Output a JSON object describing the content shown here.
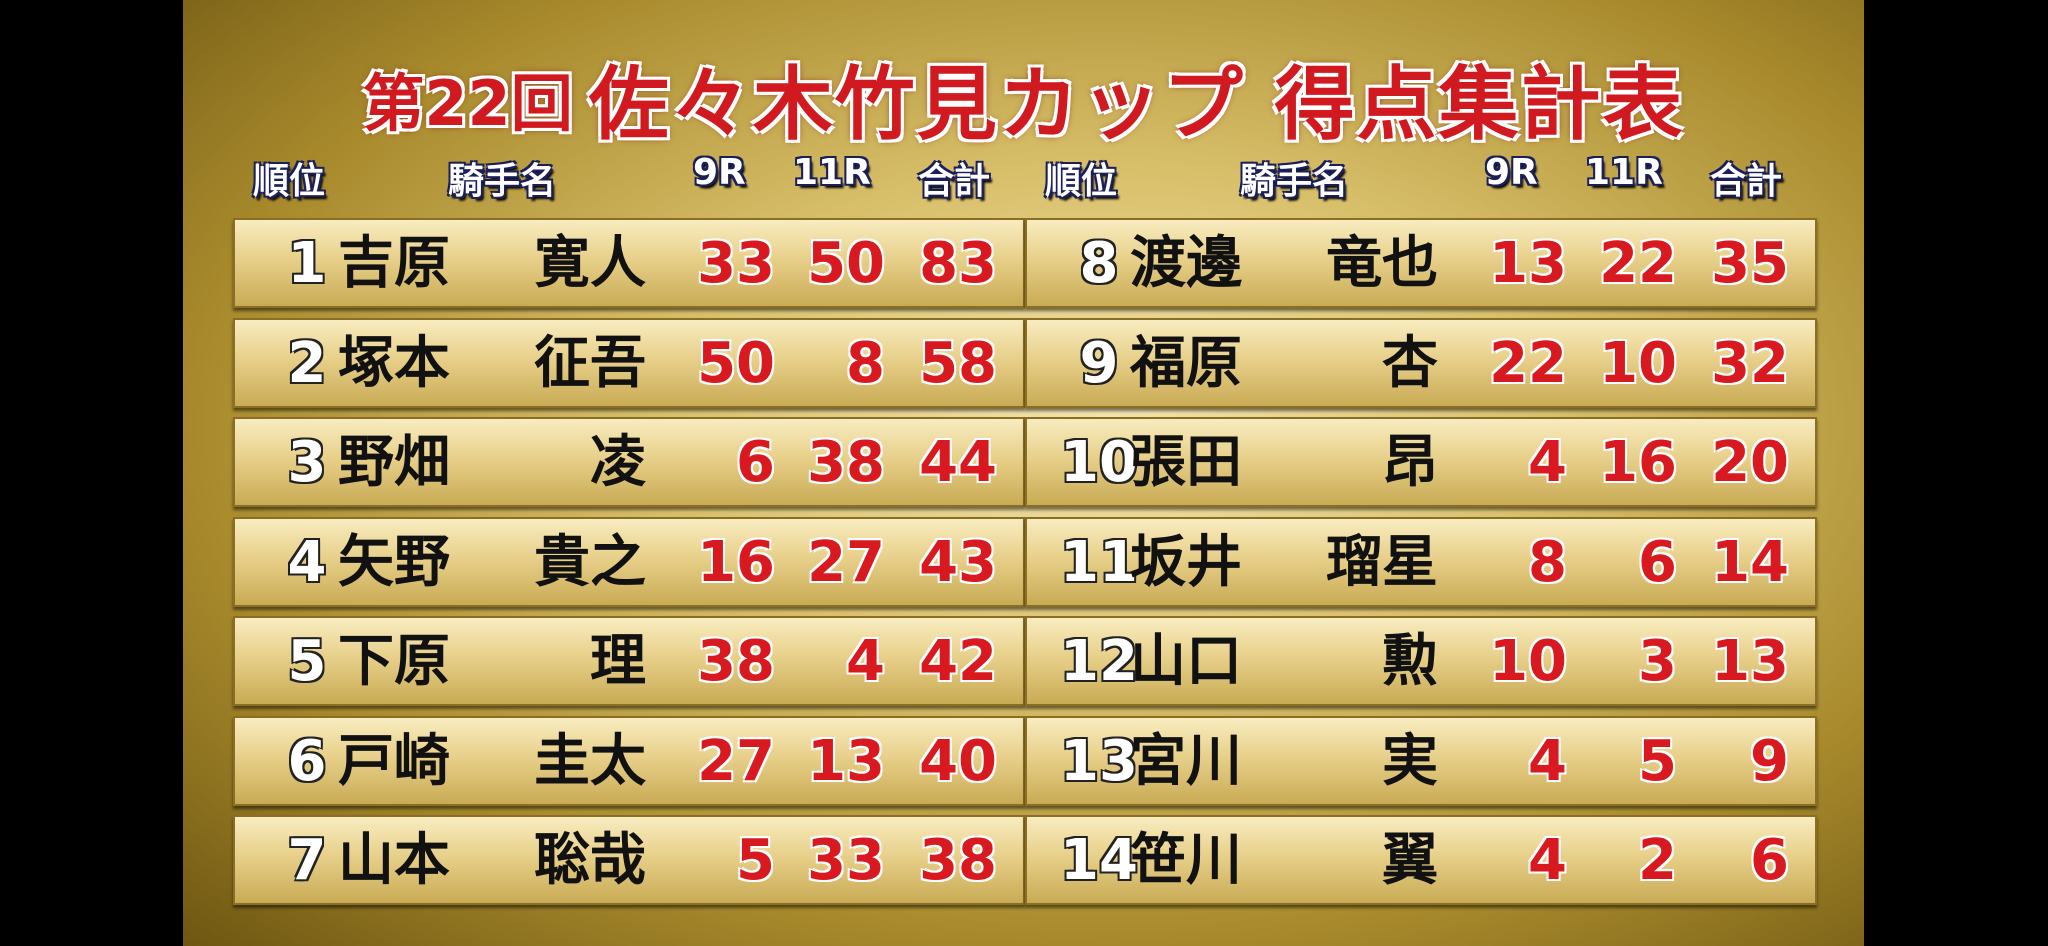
{
  "title": {
    "edition": "第22回",
    "main": "佐々木竹見カップ 得点集計表"
  },
  "headers": {
    "rank": "順位",
    "name": "騎手名",
    "r9": "9R",
    "r11": "11R",
    "total": "合計"
  },
  "colors": {
    "title": "#d01a20",
    "score": "#d8191f",
    "header_outline": "#1a1f5a"
  },
  "rows": [
    {
      "rank": "1",
      "surname": "吉原",
      "given": "寛人",
      "r9": "33",
      "r11": "50",
      "total": "83"
    },
    {
      "rank": "2",
      "surname": "塚本",
      "given": "征吾",
      "r9": "50",
      "r11": "8",
      "total": "58"
    },
    {
      "rank": "3",
      "surname": "野畑",
      "given": "凌",
      "r9": "6",
      "r11": "38",
      "total": "44"
    },
    {
      "rank": "4",
      "surname": "矢野",
      "given": "貴之",
      "r9": "16",
      "r11": "27",
      "total": "43"
    },
    {
      "rank": "5",
      "surname": "下原",
      "given": "理",
      "r9": "38",
      "r11": "4",
      "total": "42"
    },
    {
      "rank": "6",
      "surname": "戸崎",
      "given": "圭太",
      "r9": "27",
      "r11": "13",
      "total": "40"
    },
    {
      "rank": "7",
      "surname": "山本",
      "given": "聡哉",
      "r9": "5",
      "r11": "33",
      "total": "38"
    },
    {
      "rank": "8",
      "surname": "渡邊",
      "given": "竜也",
      "r9": "13",
      "r11": "22",
      "total": "35"
    },
    {
      "rank": "9",
      "surname": "福原",
      "given": "杏",
      "r9": "22",
      "r11": "10",
      "total": "32"
    },
    {
      "rank": "10",
      "surname": "張田",
      "given": "昂",
      "r9": "4",
      "r11": "16",
      "total": "20"
    },
    {
      "rank": "11",
      "surname": "坂井",
      "given": "瑠星",
      "r9": "8",
      "r11": "6",
      "total": "14"
    },
    {
      "rank": "12",
      "surname": "山口",
      "given": "勲",
      "r9": "10",
      "r11": "3",
      "total": "13"
    },
    {
      "rank": "13",
      "surname": "宮川",
      "given": "実",
      "r9": "4",
      "r11": "5",
      "total": "9"
    },
    {
      "rank": "14",
      "surname": "笹川",
      "given": "翼",
      "r9": "4",
      "r11": "2",
      "total": "6"
    }
  ]
}
